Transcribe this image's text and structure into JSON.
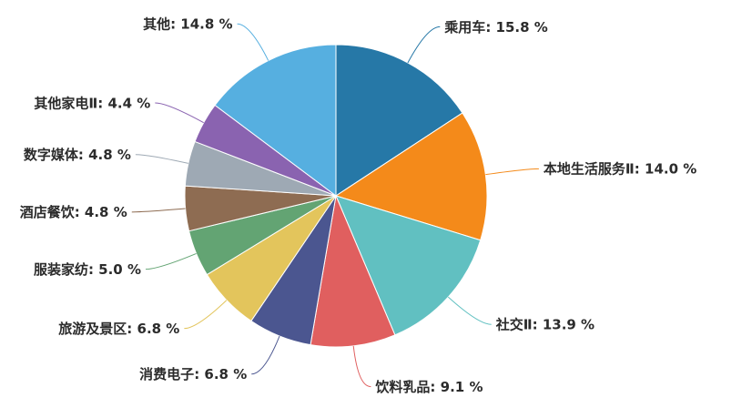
{
  "chart_data": {
    "type": "pie",
    "categories": [
      "乘用车",
      "本地生活服务Ⅱ",
      "社交Ⅱ",
      "饮料乳品",
      "消费电子",
      "旅游及景区",
      "服装家纺",
      "酒店餐饮",
      "数字媒体",
      "其他家电Ⅱ",
      "其他"
    ],
    "values": [
      15.8,
      14.0,
      13.9,
      9.1,
      6.8,
      6.8,
      5.0,
      4.8,
      4.8,
      4.4,
      14.8
    ],
    "unit": "%",
    "colors": [
      "#2678a7",
      "#f48a1a",
      "#61c0c1",
      "#e05f5f",
      "#4b5690",
      "#e3c55c",
      "#63a473",
      "#8e6c52",
      "#9ea9b4",
      "#8a63b0",
      "#56afe0"
    ]
  }
}
